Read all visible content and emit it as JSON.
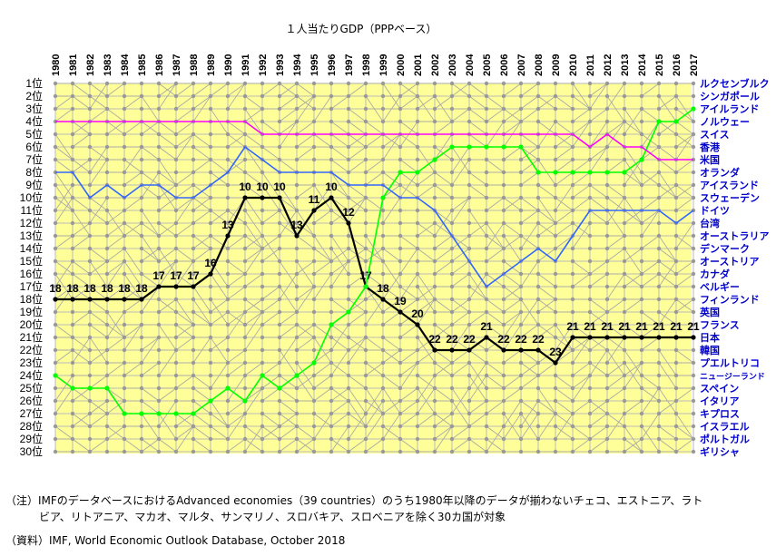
{
  "chart_data": {
    "type": "line",
    "title": "１人当たりGDP（PPPベース）",
    "x": [
      "1980",
      "1981",
      "1982",
      "1983",
      "1984",
      "1985",
      "1986",
      "1987",
      "1988",
      "1989",
      "1990",
      "1991",
      "1992",
      "1993",
      "1994",
      "1995",
      "1996",
      "1997",
      "1998",
      "1999",
      "2000",
      "2001",
      "2002",
      "2003",
      "2004",
      "2005",
      "2006",
      "2007",
      "2008",
      "2009",
      "2010",
      "2011",
      "2012",
      "2013",
      "2014",
      "2015",
      "2016",
      "2017"
    ],
    "rank_labels": [
      "1位",
      "2位",
      "3位",
      "4位",
      "5位",
      "6位",
      "7位",
      "8位",
      "9位",
      "10位",
      "11位",
      "12位",
      "13位",
      "14位",
      "15位",
      "16位",
      "17位",
      "18位",
      "19位",
      "20位",
      "21位",
      "22位",
      "23位",
      "24位",
      "25位",
      "26位",
      "27位",
      "28位",
      "29位",
      "30位"
    ],
    "ylim": [
      1,
      30
    ],
    "y_reversed": true,
    "grid": true,
    "legend_position": "right",
    "right_labels": [
      "ルクセンブルク",
      "シンガポール",
      "アイルランド",
      "ノルウェー",
      "スイス",
      "香港",
      "米国",
      "オランダ",
      "アイスランド",
      "スウェーデン",
      "ドイツ",
      "台湾",
      "オーストラリア",
      "デンマーク",
      "オーストリア",
      "カナダ",
      "ベルギー",
      "フィンランド",
      "英国",
      "フランス",
      "日本",
      "韓国",
      "プエルトリコ",
      "ニュージーランド",
      "スペイン",
      "イタリア",
      "キプロス",
      "イスラエル",
      "ポルトガル",
      "ギリシャ"
    ],
    "series": [
      {
        "name": "日本",
        "color": "#000000",
        "values": [
          18,
          18,
          18,
          18,
          18,
          18,
          17,
          17,
          17,
          16,
          13,
          10,
          10,
          10,
          13,
          11,
          10,
          12,
          17,
          18,
          19,
          20,
          22,
          22,
          22,
          21,
          22,
          22,
          22,
          23,
          21,
          21,
          21,
          21,
          21,
          21,
          21,
          21
        ],
        "labels": [
          "18",
          "18",
          "18",
          "18",
          "18",
          "18",
          "17",
          "17",
          "17",
          "16",
          "13",
          "10",
          "10",
          "10",
          "13",
          "11",
          "10",
          "12",
          "17",
          "18",
          "19",
          "20",
          "22",
          "22",
          "22",
          "21",
          "22",
          "22",
          "22",
          "23",
          "21",
          "21",
          "21",
          "21",
          "21",
          "21",
          "21",
          "21"
        ]
      },
      {
        "name": "アイルランド",
        "color": "#00ff00",
        "values": [
          24,
          25,
          25,
          25,
          27,
          27,
          27,
          27,
          27,
          26,
          25,
          26,
          24,
          25,
          24,
          23,
          20,
          19,
          17,
          10,
          8,
          8,
          7,
          6,
          6,
          6,
          6,
          6,
          8,
          8,
          8,
          8,
          8,
          8,
          7,
          4,
          4,
          3
        ]
      },
      {
        "name": "米国",
        "color": "#ff00ff",
        "values": [
          4,
          4,
          4,
          4,
          4,
          4,
          4,
          4,
          4,
          4,
          4,
          4,
          5,
          5,
          5,
          5,
          5,
          5,
          5,
          5,
          5,
          5,
          5,
          5,
          5,
          5,
          5,
          5,
          5,
          5,
          5,
          6,
          5,
          6,
          6,
          7,
          7,
          7
        ]
      },
      {
        "name": "ドイツ",
        "color": "#3366ff",
        "values": [
          8,
          8,
          10,
          9,
          10,
          9,
          9,
          10,
          10,
          9,
          8,
          6,
          7,
          8,
          8,
          8,
          8,
          9,
          9,
          9,
          10,
          10,
          11,
          13,
          15,
          17,
          16,
          15,
          14,
          15,
          13,
          11,
          11,
          11,
          11,
          11,
          12,
          11
        ]
      }
    ]
  },
  "notes": {
    "line1": "（注）IMFのデータベースにおけるAdvanced economies（39 countries）のうち1980年以降のデータが揃わないチェコ、エストニア、ラト",
    "line2": "ビア、リトアニア、マカオ、マルタ、サンマリノ、スロバキア、スロベニアを除く30カ国が対象",
    "source": "（資料）IMF, World Economic Outlook Database, October 2018"
  },
  "colors": {
    "background": "#ffff99",
    "grid": "#bbbbbb",
    "right_labels": "#0000cc",
    "background_lines": "#a6a6a6"
  }
}
